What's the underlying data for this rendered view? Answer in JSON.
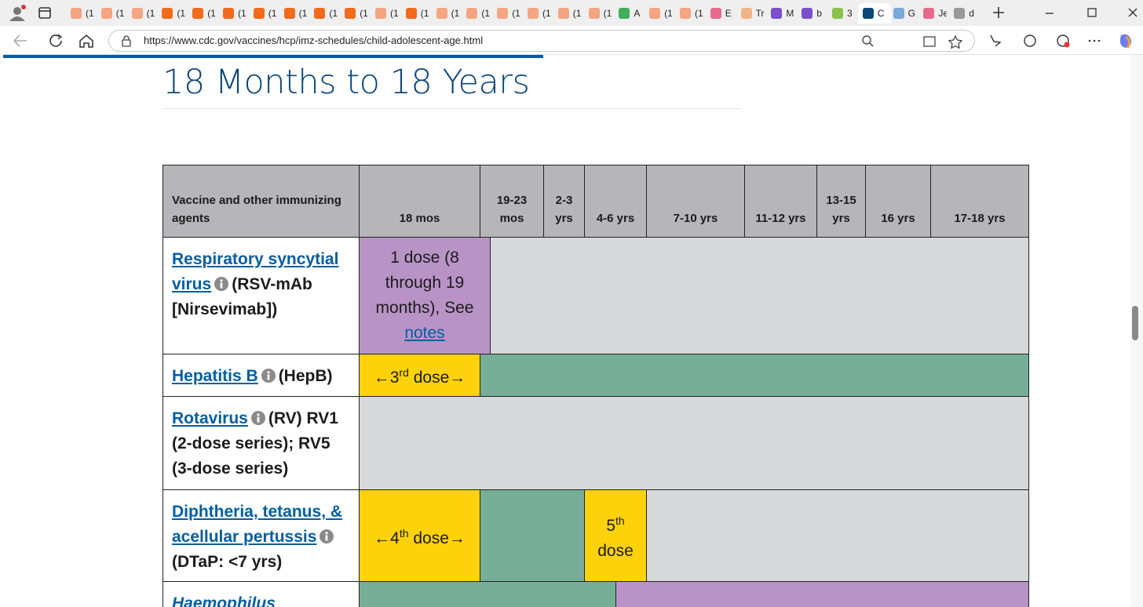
{
  "browser": {
    "tabs": [
      {
        "label": "(1",
        "icon": "#f4a582"
      },
      {
        "label": "(1",
        "icon": "#f4a582"
      },
      {
        "label": "(1",
        "icon": "#f4a582"
      },
      {
        "label": "(1",
        "icon": "#f26b1d"
      },
      {
        "label": "(1",
        "icon": "#f26b1d"
      },
      {
        "label": "(1",
        "icon": "#f26b1d"
      },
      {
        "label": "(1",
        "icon": "#f26b1d"
      },
      {
        "label": "(1",
        "icon": "#f26b1d"
      },
      {
        "label": "(1",
        "icon": "#f26b1d"
      },
      {
        "label": "(1",
        "icon": "#f26b1d"
      },
      {
        "label": "(1",
        "icon": "#f4a582"
      },
      {
        "label": "(1",
        "icon": "#f26b1d"
      },
      {
        "label": "(1",
        "icon": "#f4a582"
      },
      {
        "label": "(1",
        "icon": "#f4a582"
      },
      {
        "label": "(1",
        "icon": "#f4a582"
      },
      {
        "label": "(1",
        "icon": "#f4a582"
      },
      {
        "label": "(1",
        "icon": "#f4a582"
      },
      {
        "label": "(1",
        "icon": "#f4a582"
      },
      {
        "label": "A",
        "icon": "#3fae5a"
      },
      {
        "label": "(1",
        "icon": "#f4a582"
      },
      {
        "label": "(1",
        "icon": "#f4a582"
      },
      {
        "label": "E",
        "icon": "#e86a8a"
      },
      {
        "label": "Tr",
        "icon": "#f0b48a"
      },
      {
        "label": "M",
        "icon": "#7b4fc9"
      },
      {
        "label": "b",
        "icon": "#7b4fc9"
      },
      {
        "label": "3",
        "icon": "#8bc34a"
      },
      {
        "label": "C",
        "icon": "#0b4778",
        "active": true
      },
      {
        "label": "G",
        "icon": "#7aa7d9"
      },
      {
        "label": "Je",
        "icon": "#e86a8a"
      },
      {
        "label": "d",
        "icon": "#999999"
      }
    ],
    "url": "https://www.cdc.gov/vaccines/hcp/imz-schedules/child-adolescent-age.html"
  },
  "page": {
    "heading": "18 Months to 18 Years",
    "table": {
      "header": [
        "Vaccine and other immunizing agents",
        "18 mos",
        "19-23 mos",
        "2-3 yrs",
        "4-6 yrs",
        "7-10 yrs",
        "11-12 yrs",
        "13-15 yrs",
        "16 yrs",
        "17-18 yrs"
      ],
      "rows": [
        {
          "name": "Respiratory syncytial virus",
          "detail": "(RSV-mAb [Nirsevimab])",
          "segments": [
            {
              "color": "#b894c6",
              "text": "1 dose (8 through 19 months), See",
              "link": "notes"
            },
            {
              "color": "#d8d9da"
            }
          ]
        },
        {
          "name": "Hepatitis B",
          "detail": "(HepB)",
          "segments": [
            {
              "color": "#fdd20a",
              "text": "←3",
              "sup": "rd",
              "after": " dose→"
            },
            {
              "color": "#76ae98"
            }
          ]
        },
        {
          "name": "Rotavirus",
          "detail": "(RV) RV1 (2-dose series); RV5 (3-dose series)",
          "segments": [
            {
              "color": "#d8d9da"
            }
          ]
        },
        {
          "name": "Diphtheria, tetanus, & acellular pertussis",
          "detail": "(DTaP: <7 yrs)",
          "segments": [
            {
              "color": "#fdd20a",
              "text": "←4",
              "sup": "th",
              "after": " dose→"
            },
            {
              "color": "#76ae98"
            },
            {
              "color": "#fdd20a",
              "text": "5",
              "sup": "th",
              "after": " dose"
            },
            {
              "color": "#d8d9da"
            }
          ]
        },
        {
          "name": "Haemophilus",
          "italic": true,
          "segments": [
            {
              "color": "#76ae98"
            },
            {
              "color": "#b894c6"
            }
          ]
        }
      ]
    }
  }
}
